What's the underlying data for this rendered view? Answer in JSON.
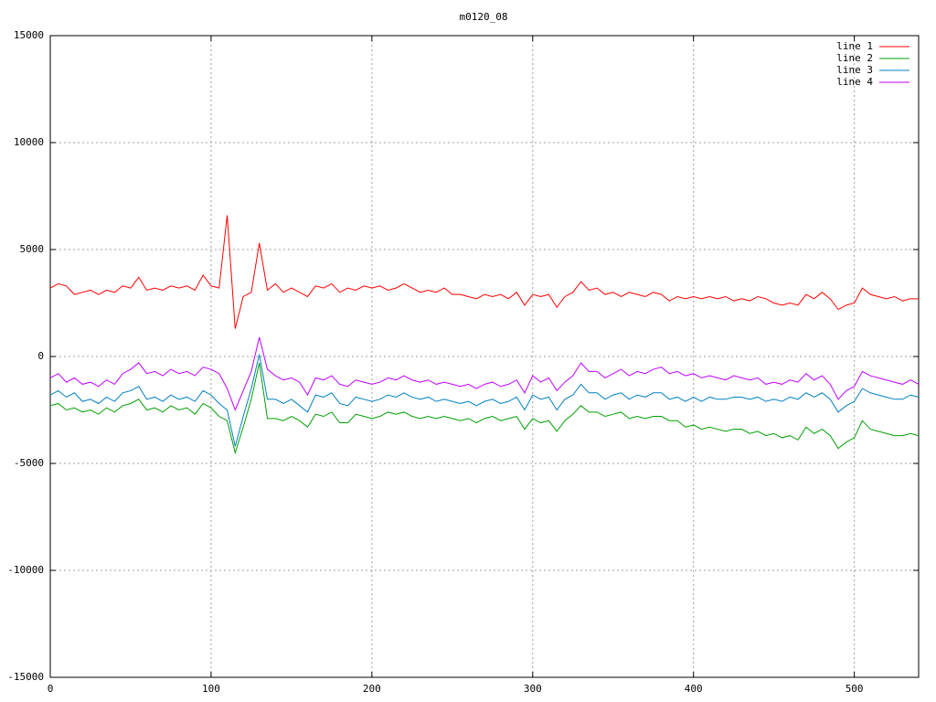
{
  "chart_data": {
    "type": "line",
    "title": "m0120_08",
    "x": [
      0,
      5,
      10,
      15,
      20,
      25,
      30,
      35,
      40,
      45,
      50,
      55,
      60,
      65,
      70,
      75,
      80,
      85,
      90,
      95,
      100,
      105,
      110,
      115,
      120,
      125,
      130,
      135,
      140,
      145,
      150,
      155,
      160,
      165,
      170,
      175,
      180,
      185,
      190,
      195,
      200,
      205,
      210,
      215,
      220,
      225,
      230,
      235,
      240,
      245,
      250,
      255,
      260,
      265,
      270,
      275,
      280,
      285,
      290,
      295,
      300,
      305,
      310,
      315,
      320,
      325,
      330,
      335,
      340,
      345,
      350,
      355,
      360,
      365,
      370,
      375,
      380,
      385,
      390,
      395,
      400,
      405,
      410,
      415,
      420,
      425,
      430,
      435,
      440,
      445,
      450,
      455,
      460,
      465,
      470,
      475,
      480,
      485,
      490,
      495,
      500,
      505,
      510,
      515,
      520,
      525,
      530,
      535,
      540
    ],
    "series": [
      {
        "name": "line 1",
        "color": "#ff0000",
        "values": [
          3200,
          3400,
          3300,
          2900,
          3000,
          3100,
          2900,
          3100,
          3000,
          3300,
          3200,
          3700,
          3100,
          3200,
          3100,
          3300,
          3200,
          3300,
          3100,
          3800,
          3300,
          3200,
          6600,
          1300,
          2800,
          3000,
          5300,
          3100,
          3400,
          3000,
          3200,
          3000,
          2800,
          3300,
          3200,
          3400,
          3000,
          3200,
          3100,
          3300,
          3200,
          3300,
          3100,
          3200,
          3400,
          3200,
          3000,
          3100,
          3000,
          3200,
          2900,
          2900,
          2800,
          2700,
          2900,
          2800,
          2900,
          2700,
          3000,
          2400,
          2900,
          2800,
          2900,
          2300,
          2800,
          3000,
          3500,
          3100,
          3200,
          2900,
          3000,
          2800,
          3000,
          2900,
          2800,
          3000,
          2900,
          2600,
          2800,
          2700,
          2800,
          2700,
          2800,
          2700,
          2800,
          2600,
          2700,
          2600,
          2800,
          2700,
          2500,
          2400,
          2500,
          2400,
          2900,
          2700,
          3000,
          2700,
          2200,
          2400,
          2500,
          3200,
          2900,
          2800,
          2700,
          2800,
          2600,
          2700,
          2700
        ]
      },
      {
        "name": "line 2",
        "color": "#00a000",
        "values": [
          -2300,
          -2200,
          -2500,
          -2400,
          -2600,
          -2500,
          -2700,
          -2400,
          -2600,
          -2300,
          -2200,
          -2000,
          -2500,
          -2400,
          -2600,
          -2300,
          -2500,
          -2400,
          -2700,
          -2200,
          -2400,
          -2800,
          -3000,
          -4500,
          -3300,
          -2000,
          -300,
          -2900,
          -2900,
          -3000,
          -2800,
          -3000,
          -3300,
          -2700,
          -2800,
          -2600,
          -3100,
          -3100,
          -2700,
          -2800,
          -2900,
          -2800,
          -2600,
          -2700,
          -2600,
          -2800,
          -2900,
          -2800,
          -2900,
          -2800,
          -2900,
          -3000,
          -2900,
          -3100,
          -2900,
          -2800,
          -3000,
          -2900,
          -2800,
          -3400,
          -2900,
          -3100,
          -3000,
          -3500,
          -3000,
          -2700,
          -2300,
          -2600,
          -2600,
          -2800,
          -2700,
          -2600,
          -2900,
          -2800,
          -2900,
          -2800,
          -2800,
          -3000,
          -3000,
          -3300,
          -3200,
          -3400,
          -3300,
          -3400,
          -3500,
          -3400,
          -3400,
          -3600,
          -3500,
          -3700,
          -3600,
          -3800,
          -3700,
          -3900,
          -3300,
          -3600,
          -3400,
          -3700,
          -4300,
          -4000,
          -3800,
          -3000,
          -3400,
          -3500,
          -3600,
          -3700,
          -3700,
          -3600,
          -3700
        ]
      },
      {
        "name": "line 3",
        "color": "#0080c0",
        "values": [
          -1800,
          -1600,
          -1900,
          -1700,
          -2100,
          -2000,
          -2200,
          -1900,
          -2100,
          -1700,
          -1600,
          -1400,
          -2000,
          -1900,
          -2100,
          -1800,
          -2000,
          -1900,
          -2100,
          -1600,
          -1800,
          -2200,
          -2500,
          -4200,
          -2800,
          -1500,
          100,
          -2000,
          -2000,
          -2200,
          -2000,
          -2300,
          -2600,
          -1800,
          -1900,
          -1700,
          -2200,
          -2300,
          -1900,
          -2000,
          -2100,
          -2000,
          -1800,
          -1900,
          -1700,
          -1900,
          -2000,
          -1900,
          -2100,
          -2000,
          -2100,
          -2200,
          -2100,
          -2300,
          -2100,
          -2000,
          -2200,
          -2100,
          -1900,
          -2500,
          -1800,
          -2000,
          -1900,
          -2500,
          -2000,
          -1800,
          -1300,
          -1700,
          -1700,
          -2000,
          -1800,
          -1700,
          -2000,
          -1800,
          -1900,
          -1700,
          -1700,
          -2000,
          -1900,
          -2100,
          -1900,
          -2100,
          -1900,
          -2000,
          -2000,
          -1900,
          -1900,
          -2000,
          -1900,
          -2100,
          -2000,
          -2100,
          -1900,
          -2000,
          -1700,
          -1900,
          -1700,
          -2000,
          -2600,
          -2300,
          -2100,
          -1500,
          -1700,
          -1800,
          -1900,
          -2000,
          -2000,
          -1800,
          -1900
        ]
      },
      {
        "name": "line 4",
        "color": "#c000ff",
        "values": [
          -1000,
          -800,
          -1200,
          -1000,
          -1300,
          -1200,
          -1400,
          -1100,
          -1300,
          -800,
          -600,
          -300,
          -800,
          -700,
          -900,
          -600,
          -800,
          -700,
          -900,
          -500,
          -600,
          -800,
          -1500,
          -2500,
          -1600,
          -700,
          900,
          -600,
          -900,
          -1100,
          -1000,
          -1200,
          -1800,
          -1000,
          -1100,
          -900,
          -1300,
          -1400,
          -1100,
          -1200,
          -1300,
          -1200,
          -1000,
          -1100,
          -900,
          -1100,
          -1200,
          -1100,
          -1300,
          -1200,
          -1300,
          -1400,
          -1300,
          -1500,
          -1300,
          -1200,
          -1400,
          -1300,
          -1100,
          -1700,
          -900,
          -1200,
          -1000,
          -1600,
          -1200,
          -900,
          -300,
          -700,
          -700,
          -1000,
          -800,
          -600,
          -900,
          -700,
          -800,
          -600,
          -500,
          -800,
          -700,
          -900,
          -800,
          -1000,
          -900,
          -1000,
          -1100,
          -900,
          -1000,
          -1100,
          -1000,
          -1300,
          -1200,
          -1300,
          -1100,
          -1200,
          -800,
          -1100,
          -900,
          -1300,
          -2000,
          -1600,
          -1400,
          -700,
          -900,
          -1000,
          -1100,
          -1200,
          -1300,
          -1100,
          -1300
        ]
      }
    ],
    "xlim": [
      0,
      540
    ],
    "xticks": [
      0,
      100,
      200,
      300,
      400,
      500
    ],
    "ylim": [
      -15000,
      15000
    ],
    "yticks": [
      -15000,
      -10000,
      -5000,
      0,
      5000,
      10000,
      15000
    ],
    "grid": true,
    "legend": "upper-right"
  }
}
